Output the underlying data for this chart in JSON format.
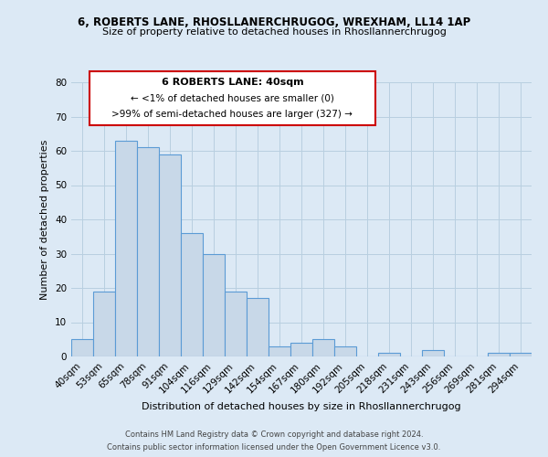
{
  "title_line1": "6, ROBERTS LANE, RHOSLLANERCHRUGOG, WREXHAM, LL14 1AP",
  "title_line2": "Size of property relative to detached houses in Rhosllannerchrugog",
  "xlabel": "Distribution of detached houses by size in Rhosllannerchrugog",
  "ylabel": "Number of detached properties",
  "bin_labels": [
    "40sqm",
    "53sqm",
    "65sqm",
    "78sqm",
    "91sqm",
    "104sqm",
    "116sqm",
    "129sqm",
    "142sqm",
    "154sqm",
    "167sqm",
    "180sqm",
    "192sqm",
    "205sqm",
    "218sqm",
    "231sqm",
    "243sqm",
    "256sqm",
    "269sqm",
    "281sqm",
    "294sqm"
  ],
  "bar_values": [
    5,
    19,
    63,
    61,
    59,
    36,
    30,
    19,
    17,
    3,
    4,
    5,
    3,
    0,
    1,
    0,
    2,
    0,
    0,
    1,
    1
  ],
  "bar_color": "#c8d8e8",
  "bar_edge_color": "#5b9bd5",
  "ylim": [
    0,
    80
  ],
  "yticks": [
    0,
    10,
    20,
    30,
    40,
    50,
    60,
    70,
    80
  ],
  "bg_color": "#dce9f5",
  "grid_color": "#b8cfe0",
  "annotation_box_color": "#ffffff",
  "annotation_border_color": "#cc0000",
  "annotation_line1": "6 ROBERTS LANE: 40sqm",
  "annotation_line2": "← <1% of detached houses are smaller (0)",
  "annotation_line3": ">99% of semi-detached houses are larger (327) →",
  "footer_line1": "Contains HM Land Registry data © Crown copyright and database right 2024.",
  "footer_line2": "Contains public sector information licensed under the Open Government Licence v3.0.",
  "subject_bar_index": 0,
  "title1_fontsize": 8.5,
  "title2_fontsize": 8.0,
  "xlabel_fontsize": 8.0,
  "ylabel_fontsize": 8.0,
  "tick_fontsize": 7.5,
  "footer_fontsize": 6.0
}
